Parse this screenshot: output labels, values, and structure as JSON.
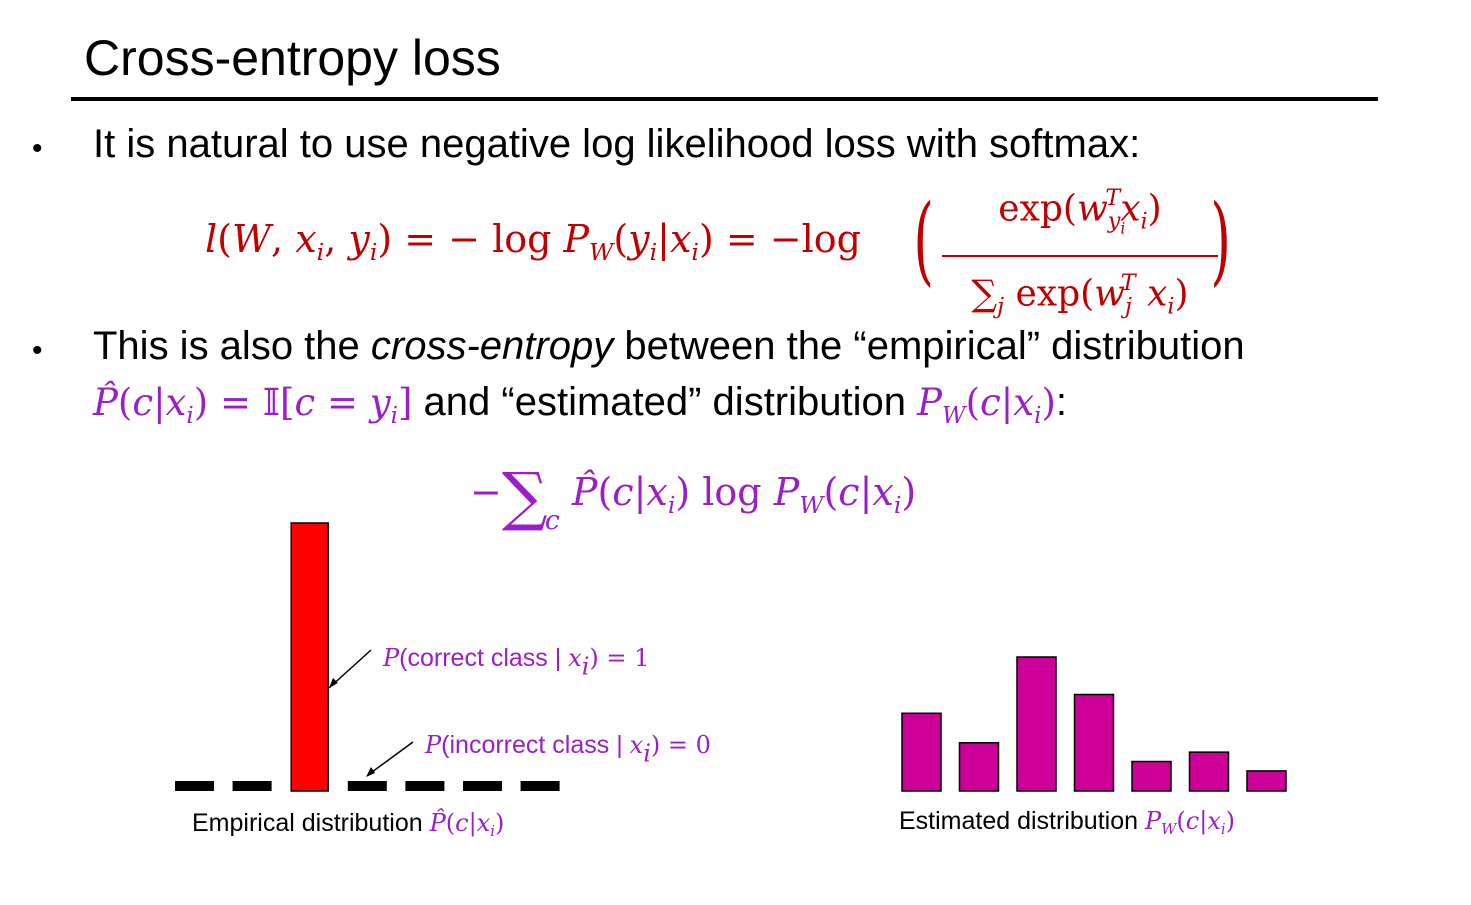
{
  "title": "Cross-entropy loss",
  "bullets": {
    "symbol": "•",
    "b1_text": "It is natural to use negative log likelihood loss with softmax:",
    "b2_text_pre": "This is also the ",
    "b2_text_em": "cross-entropy",
    "b2_text_post": " between the “empirical” distribution",
    "b2_line2_mid": " and “estimated” distribution ",
    "b2_line2_end": ":"
  },
  "annotations": {
    "correct_text": "(correct class | ",
    "correct_value": "1",
    "incorrect_text": "(incorrect class | ",
    "incorrect_value": "0"
  },
  "captions": {
    "empirical": "Empirical distribution ",
    "estimated": "Estimated distribution "
  },
  "colors": {
    "red_formula": "#c00000",
    "purple_formula": "#9a1fc9",
    "empirical_bar": "#ff0000",
    "estimated_bar": "#cc0099"
  },
  "chart_data": [
    {
      "type": "bar",
      "name": "empirical",
      "values": [
        0,
        0,
        1,
        0,
        0,
        0,
        0
      ],
      "highlight_index": 2,
      "ylim": [
        0,
        1
      ]
    },
    {
      "type": "bar",
      "name": "estimated",
      "values": [
        0.29,
        0.18,
        0.5,
        0.36,
        0.11,
        0.145,
        0.075
      ],
      "ylim": [
        0,
        1
      ]
    }
  ]
}
